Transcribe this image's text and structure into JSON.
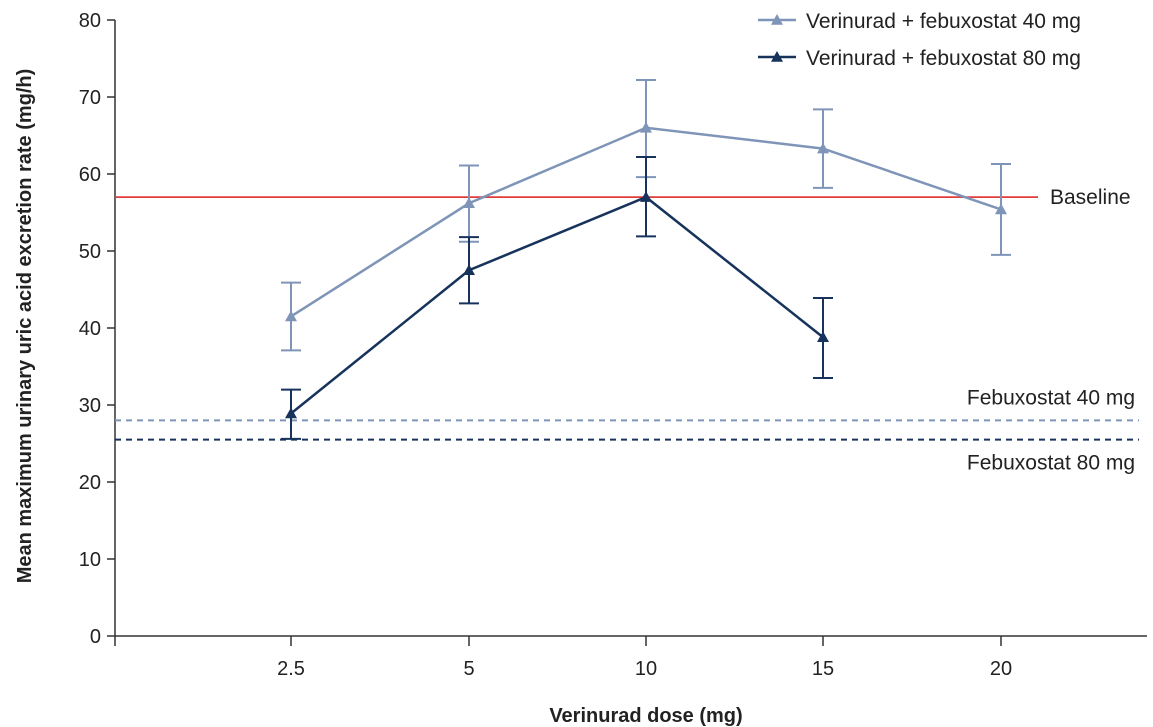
{
  "chart_data": {
    "type": "line",
    "xlabel": "Verinurad dose (mg)",
    "ylabel": "Mean maximum urinary uric acid excretion rate (mg/h)",
    "categories": [
      "2.5",
      "5",
      "10",
      "15",
      "20"
    ],
    "ylim": [
      0,
      80
    ],
    "yticks": [
      "0",
      "10",
      "20",
      "30",
      "40",
      "50",
      "60",
      "70",
      "80"
    ],
    "grid": false,
    "legend_position": "top-right",
    "series": [
      {
        "name": "Verinurad + febuxostat 40 mg",
        "color": "#7f95b8",
        "marker": "triangle",
        "values": [
          41.5,
          56.2,
          66.0,
          63.3,
          55.4
        ],
        "error_low": [
          37.1,
          51.2,
          59.6,
          58.2,
          49.5
        ],
        "error_high": [
          45.9,
          61.1,
          72.2,
          68.4,
          61.3
        ]
      },
      {
        "name": "Verinurad + febuxostat 80 mg",
        "color": "#17335c",
        "marker": "triangle",
        "values": [
          28.9,
          47.5,
          57.0,
          38.8,
          null
        ],
        "error_low": [
          25.6,
          43.2,
          51.9,
          33.5,
          null
        ],
        "error_high": [
          32.0,
          51.8,
          62.2,
          43.9,
          null
        ]
      }
    ],
    "reference_lines": [
      {
        "label": "Baseline",
        "value": 57.0,
        "color": "#e03c3c",
        "style": "solid"
      },
      {
        "label": "Febuxostat 40 mg",
        "value": 28.0,
        "color": "#7f95b8",
        "style": "dashed"
      },
      {
        "label": "Febuxostat 80 mg",
        "value": 25.5,
        "color": "#17335c",
        "style": "dashed"
      }
    ]
  }
}
